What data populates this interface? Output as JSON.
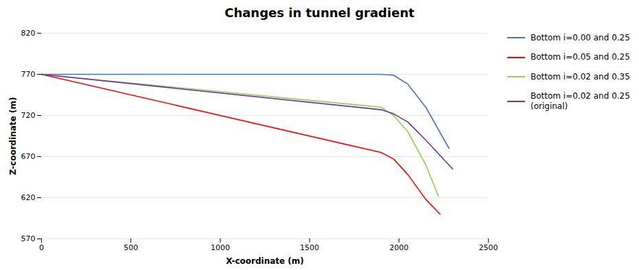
{
  "chart_data": {
    "type": "line",
    "title": "Changes in tunnel gradient",
    "xlabel": "X-coordinate (m)",
    "ylabel": "Z-coordinate (m)",
    "xlim": [
      0,
      2500
    ],
    "ylim": [
      570,
      820
    ],
    "xticks": [
      0,
      500,
      1000,
      1500,
      2000,
      2500
    ],
    "yticks": [
      570,
      620,
      670,
      720,
      770,
      820
    ],
    "grid": "y",
    "legend": "right",
    "series": [
      {
        "name": "Bottom i=0.00 and 0.25",
        "color": "#4472C4",
        "x": [
          0,
          1900,
          1970,
          2050,
          2150,
          2280
        ],
        "values": [
          770,
          770,
          769,
          758,
          730,
          680
        ]
      },
      {
        "name": "Bottom i=0.05 and 0.25",
        "color": "#FF0000",
        "x": [
          0,
          1900,
          1970,
          2050,
          2150,
          2230
        ],
        "values": [
          770,
          675,
          667,
          648,
          618,
          600
        ]
      },
      {
        "name": "Bottom i=0.02 and 0.35",
        "color": "#92D050",
        "x": [
          0,
          1900,
          1970,
          2050,
          2150,
          2220
        ],
        "values": [
          770,
          730,
          720,
          700,
          660,
          622
        ]
      },
      {
        "name": "Bottom i=0.02 and 0.25\n(original)",
        "color": "#7030A0",
        "x": [
          0,
          1900,
          1970,
          2050,
          2150,
          2300
        ],
        "values": [
          770,
          727,
          722,
          712,
          690,
          655
        ]
      }
    ]
  }
}
